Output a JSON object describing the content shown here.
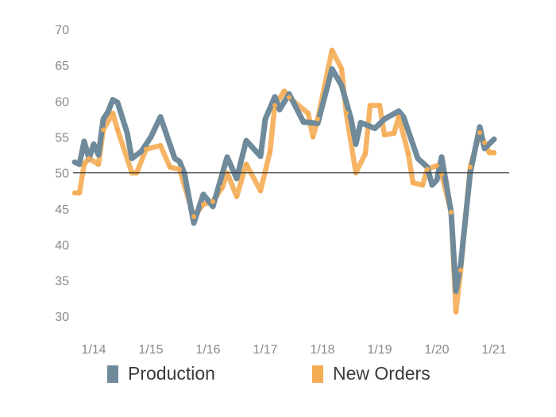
{
  "chart_data": {
    "type": "line",
    "title": "",
    "xlabel": "",
    "ylabel": "",
    "ylim": [
      30,
      70
    ],
    "yticks": [
      "30",
      "35",
      "40",
      "45",
      "50",
      "55",
      "60",
      "65",
      "70"
    ],
    "xticks": [
      {
        "label": "1/14",
        "date": "2014-01"
      },
      {
        "label": "1/15",
        "date": "2015-01"
      },
      {
        "label": "1/16",
        "date": "2016-01"
      },
      {
        "label": "1/17",
        "date": "2017-01"
      },
      {
        "label": "1/18",
        "date": "2018-01"
      },
      {
        "label": "1/19",
        "date": "2019-01"
      },
      {
        "label": "1/20",
        "date": "2020-01"
      },
      {
        "label": "1/21",
        "date": "2021-01"
      }
    ],
    "reference_line": 50,
    "grid": false,
    "legend": "bottom",
    "series": [
      {
        "name": "Production",
        "color": "#6f8a9a",
        "points": [
          [
            "2013-09",
            51.5
          ],
          [
            "2013-10",
            51.2
          ],
          [
            "2013-11",
            54.4
          ],
          [
            "2013-12",
            52
          ],
          [
            "2014-01",
            54
          ],
          [
            "2014-02",
            52.5
          ],
          [
            "2014-03",
            57.5
          ],
          [
            "2014-04",
            58.5
          ],
          [
            "2014-05",
            60.2
          ],
          [
            "2014-06",
            59.8
          ],
          [
            "2014-08",
            55.6
          ],
          [
            "2014-09",
            52
          ],
          [
            "2014-11",
            53
          ],
          [
            "2015-01",
            55
          ],
          [
            "2015-03",
            57.8
          ],
          [
            "2015-06",
            52
          ],
          [
            "2015-07",
            51.6
          ],
          [
            "2015-08",
            50
          ],
          [
            "2015-10",
            43
          ],
          [
            "2015-12",
            47
          ],
          [
            "2016-02",
            45.3
          ],
          [
            "2016-05",
            52.2
          ],
          [
            "2016-07",
            49.2
          ],
          [
            "2016-09",
            54.5
          ],
          [
            "2016-12",
            52.3
          ],
          [
            "2017-01",
            57.5
          ],
          [
            "2017-03",
            60.6
          ],
          [
            "2017-04",
            58.8
          ],
          [
            "2017-06",
            61
          ],
          [
            "2017-09",
            57.1
          ],
          [
            "2017-12",
            56.9
          ],
          [
            "2018-03",
            64.5
          ],
          [
            "2018-05",
            62.2
          ],
          [
            "2018-07",
            57.5
          ],
          [
            "2018-08",
            54
          ],
          [
            "2018-09",
            57
          ],
          [
            "2018-12",
            56.2
          ],
          [
            "2019-02",
            57.5
          ],
          [
            "2019-05",
            58.6
          ],
          [
            "2019-06",
            57.8
          ],
          [
            "2019-09",
            52
          ],
          [
            "2019-11",
            50.8
          ],
          [
            "2019-12",
            48.3
          ],
          [
            "2020-01",
            49
          ],
          [
            "2020-02",
            52.2
          ],
          [
            "2020-04",
            44.5
          ],
          [
            "2020-05",
            33.5
          ],
          [
            "2020-06",
            37.2
          ],
          [
            "2020-08",
            50
          ],
          [
            "2020-10",
            56.4
          ],
          [
            "2020-11",
            53.4
          ],
          [
            "2021-01",
            54.7
          ]
        ]
      },
      {
        "name": "New Orders",
        "color": "#f5ad55",
        "points": [
          [
            "2013-09",
            47.2
          ],
          [
            "2013-10",
            47.2
          ],
          [
            "2013-11",
            51.2
          ],
          [
            "2013-12",
            52
          ],
          [
            "2014-02",
            51.2
          ],
          [
            "2014-03",
            56
          ],
          [
            "2014-05",
            58.3
          ],
          [
            "2014-06",
            56
          ],
          [
            "2014-09",
            50
          ],
          [
            "2014-10",
            50
          ],
          [
            "2014-12",
            53.3
          ],
          [
            "2015-03",
            53.8
          ],
          [
            "2015-05",
            50.8
          ],
          [
            "2015-07",
            50.5
          ],
          [
            "2015-10",
            43.9
          ],
          [
            "2015-12",
            45.6
          ],
          [
            "2016-02",
            46
          ],
          [
            "2016-04",
            48
          ],
          [
            "2016-05",
            50
          ],
          [
            "2016-07",
            46.7
          ],
          [
            "2016-09",
            51.2
          ],
          [
            "2016-12",
            47.5
          ],
          [
            "2017-02",
            53
          ],
          [
            "2017-03",
            59.4
          ],
          [
            "2017-05",
            61.4
          ],
          [
            "2017-06",
            60.5
          ],
          [
            "2017-10",
            58.3
          ],
          [
            "2017-11",
            55
          ],
          [
            "2017-12",
            57.5
          ],
          [
            "2018-03",
            67.1
          ],
          [
            "2018-05",
            64.5
          ],
          [
            "2018-06",
            58.3
          ],
          [
            "2018-08",
            50
          ],
          [
            "2018-10",
            52.7
          ],
          [
            "2018-11",
            59.4
          ],
          [
            "2019-01",
            59.4
          ],
          [
            "2019-02",
            55.3
          ],
          [
            "2019-04",
            55.5
          ],
          [
            "2019-05",
            57.8
          ],
          [
            "2019-07",
            52.7
          ],
          [
            "2019-08",
            48.6
          ],
          [
            "2019-10",
            48.3
          ],
          [
            "2019-11",
            50.5
          ],
          [
            "2020-01",
            51
          ],
          [
            "2020-02",
            49.8
          ],
          [
            "2020-04",
            44.5
          ],
          [
            "2020-05",
            30.6
          ],
          [
            "2020-06",
            36.4
          ],
          [
            "2020-08",
            50.8
          ],
          [
            "2020-10",
            55.6
          ],
          [
            "2020-11",
            54.2
          ],
          [
            "2020-12",
            52.8
          ],
          [
            "2021-01",
            52.8
          ]
        ]
      }
    ]
  }
}
